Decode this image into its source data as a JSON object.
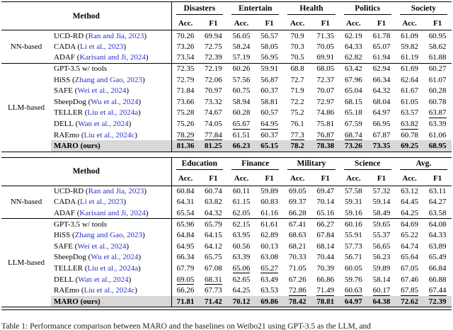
{
  "colors": {
    "citation_blue": "#2b32c8",
    "highlight_gray": "#d8d8d8"
  },
  "caption": "Table 1: Performance comparison between MARO and the baselines on Weibo21 using GPT-3.5 as the LLM, and",
  "tables": [
    {
      "method_header": "Method",
      "domains": [
        "Disasters",
        "Entertain",
        "Health",
        "Politics",
        "Society"
      ],
      "subheaders": [
        "Acc.",
        "F1"
      ],
      "groups": [
        {
          "label": "NN-based",
          "rows": [
            {
              "method": "UCD-RD",
              "cite": "Ran and Jia, 2023",
              "values": [
                "70.26",
                "69.94",
                "56.05",
                "56.57",
                "70.9",
                "71.35",
                "62.19",
                "61.78",
                "61.09",
                "60.95"
              ],
              "underline": [],
              "best": false
            },
            {
              "method": "CADA",
              "cite": "Li et al., 2023",
              "values": [
                "73.26",
                "72.75",
                "58.24",
                "58.05",
                "70.3",
                "70.05",
                "64.33",
                "65.07",
                "59.82",
                "58.62"
              ],
              "underline": [],
              "best": false
            },
            {
              "method": "ADAF",
              "cite": "Karisani and Ji, 2024",
              "values": [
                "73.54",
                "72.39",
                "57.19",
                "56.95",
                "70.5",
                "69.91",
                "62.82",
                "61.94",
                "61.19",
                "61.88"
              ],
              "underline": [],
              "best": false
            }
          ]
        },
        {
          "label": "LLM-based",
          "rows": [
            {
              "method": "GPT-3.5 w/ tools",
              "cite": null,
              "values": [
                "72.35",
                "72.19",
                "60.26",
                "59.91",
                "68.8",
                "68.05",
                "63.42",
                "62.94",
                "61.69",
                "60.27"
              ],
              "underline": [],
              "best": false
            },
            {
              "method": "HiSS",
              "cite": "Zhang and Gao, 2023",
              "values": [
                "72.79",
                "72.06",
                "57.56",
                "56.87",
                "72.7",
                "72.37",
                "67.96",
                "66.34",
                "62.64",
                "61.07"
              ],
              "underline": [],
              "best": false
            },
            {
              "method": "SAFE",
              "cite": "Wei et al., 2024",
              "values": [
                "71.84",
                "70.97",
                "60.75",
                "60.37",
                "71.9",
                "70.07",
                "65.04",
                "64.32",
                "61.67",
                "60.28"
              ],
              "underline": [],
              "best": false
            },
            {
              "method": "SheepDog",
              "cite": "Wu et al., 2024",
              "values": [
                "73.66",
                "73.32",
                "58.94",
                "58.81",
                "72.2",
                "72.97",
                "68.15",
                "68.04",
                "61.05",
                "60.78"
              ],
              "underline": [],
              "best": false
            },
            {
              "method": "TELLER",
              "cite": "Liu et al., 2024a",
              "values": [
                "75.28",
                "74.67",
                "60.28",
                "60.57",
                "75.2",
                "74.86",
                "65.18",
                "64.97",
                "63.57",
                "63.87"
              ],
              "underline": [
                9
              ],
              "best": false
            },
            {
              "method": "DELL",
              "cite": "Wan et al., 2024",
              "values": [
                "75.26",
                "74.05",
                "65.67",
                "64.95",
                "76.1",
                "75.81",
                "67.59",
                "66.95",
                "63.82",
                "63.39"
              ],
              "underline": [
                2,
                3,
                8
              ],
              "best": false
            },
            {
              "method": "RAEmo",
              "cite": "Liu et al., 2024c",
              "values": [
                "78.29",
                "77.84",
                "61.51",
                "60.37",
                "77.3",
                "76.87",
                "68.74",
                "67.87",
                "60.78",
                "61.06"
              ],
              "underline": [
                0,
                1,
                4,
                5,
                6
              ],
              "best": false
            },
            {
              "method": "MARO (ours)",
              "cite": null,
              "values": [
                "81.36",
                "81.25",
                "66.23",
                "65.15",
                "78.2",
                "78.38",
                "73.26",
                "73.35",
                "69.25",
                "68.95"
              ],
              "underline": [],
              "best": true
            }
          ]
        }
      ]
    },
    {
      "method_header": "Method",
      "domains": [
        "Education",
        "Finance",
        "Military",
        "Science",
        "Avg."
      ],
      "subheaders": [
        "Acc.",
        "F1"
      ],
      "groups": [
        {
          "label": "NN-based",
          "rows": [
            {
              "method": "UCD-RD",
              "cite": "Ran and Jia, 2023",
              "values": [
                "60.84",
                "60.74",
                "60.11",
                "59.89",
                "69.05",
                "69.47",
                "57.58",
                "57.32",
                "63.12",
                "63.11"
              ],
              "underline": [],
              "best": false
            },
            {
              "method": "CADA",
              "cite": "Li et al., 2023",
              "values": [
                "64.31",
                "63.82",
                "61.15",
                "60.83",
                "69.37",
                "70.14",
                "59.31",
                "59.14",
                "64.45",
                "64.27"
              ],
              "underline": [],
              "best": false
            },
            {
              "method": "ADAF",
              "cite": "Karisani and Ji, 2024",
              "values": [
                "65.54",
                "64.32",
                "62.05",
                "61.16",
                "66.28",
                "65.16",
                "59.16",
                "58.49",
                "64.25",
                "63.58"
              ],
              "underline": [],
              "best": false
            }
          ]
        },
        {
          "label": "LLM-based",
          "rows": [
            {
              "method": "GPT-3.5 w/ tools",
              "cite": null,
              "values": [
                "65.96",
                "65.79",
                "62.15",
                "61.61",
                "67.41",
                "66.27",
                "60.16",
                "59.65",
                "64.69",
                "64.08"
              ],
              "underline": [],
              "best": false
            },
            {
              "method": "HiSS",
              "cite": "Zhang and Gao, 2023",
              "values": [
                "64.84",
                "64.15",
                "63.95",
                "62.89",
                "68.63",
                "67.84",
                "55.91",
                "55.37",
                "65.22",
                "64.33"
              ],
              "underline": [],
              "best": false
            },
            {
              "method": "SAFE",
              "cite": "Wei et al., 2024",
              "values": [
                "64.95",
                "64.12",
                "60.56",
                "60.13",
                "68.21",
                "68.14",
                "57.73",
                "56.65",
                "64.74",
                "63.89"
              ],
              "underline": [],
              "best": false
            },
            {
              "method": "SheepDog",
              "cite": "Wu et al., 2024",
              "values": [
                "66.34",
                "65.75",
                "63.39",
                "63.08",
                "70.33",
                "70.44",
                "56.71",
                "56.23",
                "65.64",
                "65.49"
              ],
              "underline": [],
              "best": false
            },
            {
              "method": "TELLER",
              "cite": "Liu et al., 2024a",
              "values": [
                "67.79",
                "67.08",
                "65.06",
                "65.27",
                "71.05",
                "70.39",
                "60.05",
                "59.89",
                "67.05",
                "66.84"
              ],
              "underline": [
                2,
                3
              ],
              "best": false
            },
            {
              "method": "DELL",
              "cite": "Wan et al., 2024",
              "values": [
                "69.05",
                "68.31",
                "62.65",
                "63.49",
                "67.26",
                "66.86",
                "59.76",
                "58.14",
                "67.46",
                "66.88"
              ],
              "underline": [
                0,
                1
              ],
              "best": false
            },
            {
              "method": "RAEmo",
              "cite": "Liu et al., 2024c",
              "values": [
                "66.26",
                "67.73",
                "64.25",
                "63.53",
                "72.86",
                "71.49",
                "60.63",
                "60.17",
                "67.85",
                "67.44"
              ],
              "underline": [
                4,
                5,
                6,
                7,
                8,
                9
              ],
              "best": false
            },
            {
              "method": "MARO (ours)",
              "cite": null,
              "values": [
                "71.81",
                "71.42",
                "70.12",
                "69.86",
                "78.42",
                "78.81",
                "64.97",
                "64.38",
                "72.62",
                "72.39"
              ],
              "underline": [],
              "best": true
            }
          ]
        }
      ]
    }
  ]
}
